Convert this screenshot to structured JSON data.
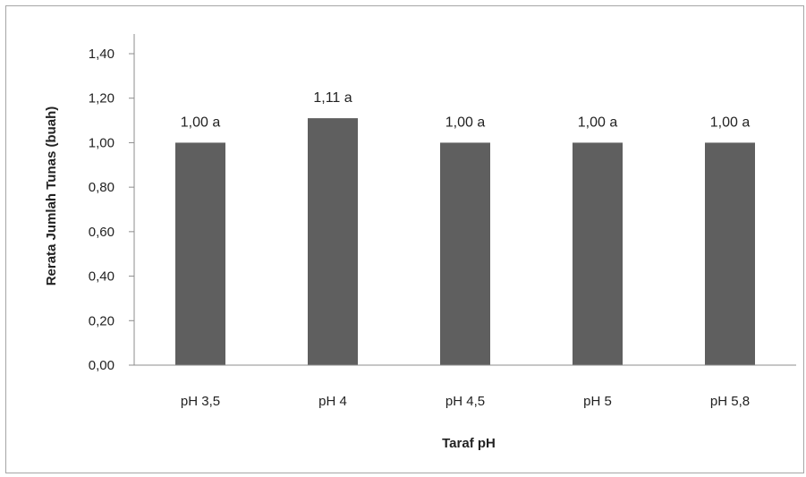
{
  "chart_data": {
    "type": "bar",
    "title": "",
    "xlabel": "Taraf pH",
    "ylabel": "Rerata Jumlah Tunas (buah)",
    "categories": [
      "pH 3,5",
      "pH 4",
      "pH 4,5",
      "pH 5",
      "pH 5,8"
    ],
    "values": [
      1.0,
      1.11,
      1.0,
      1.0,
      1.0
    ],
    "data_labels": [
      "1,00 a",
      "1,11 a",
      "1,00 a",
      "1,00 a",
      "1,00 a"
    ],
    "ylim": [
      0,
      1.4
    ],
    "yticks": [
      0,
      0.2,
      0.4,
      0.6,
      0.8,
      1.0,
      1.2,
      1.4
    ],
    "ytick_labels": [
      "0,00",
      "0,20",
      "0,40",
      "0,60",
      "0,80",
      "1,00",
      "1,20",
      "1,40"
    ],
    "grid": false,
    "legend": "none",
    "bar_color": "#5f5f5f"
  }
}
